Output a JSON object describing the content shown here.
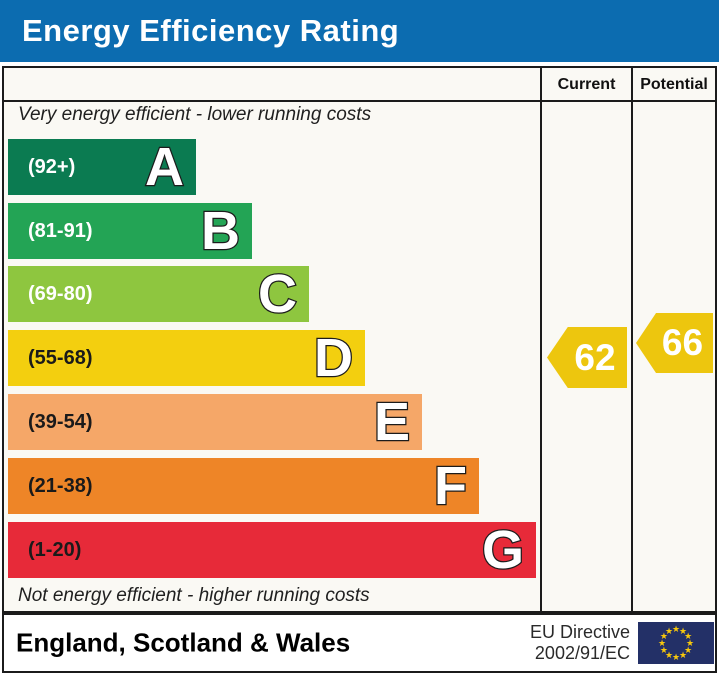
{
  "header": {
    "title": "Energy Efficiency Rating",
    "background_color": "#0c6cb0"
  },
  "table": {
    "columns": {
      "current_label": "Current",
      "potential_label": "Potential"
    },
    "top_note": "Very energy efficient - lower running costs",
    "bottom_note": "Not energy efficient - higher running costs"
  },
  "chart_data": {
    "type": "bar",
    "title": "Energy Efficiency Rating",
    "categories": [
      "A",
      "B",
      "C",
      "D",
      "E",
      "F",
      "G"
    ],
    "bands": [
      {
        "letter": "A",
        "range_label": "(92+)",
        "range_min": 92,
        "range_max": 100,
        "color": "#0b7b51",
        "label_color": "#ffffff"
      },
      {
        "letter": "B",
        "range_label": "(81-91)",
        "range_min": 81,
        "range_max": 91,
        "color": "#23a455",
        "label_color": "#ffffff"
      },
      {
        "letter": "C",
        "range_label": "(69-80)",
        "range_min": 69,
        "range_max": 80,
        "color": "#8ec63f",
        "label_color": "#ffffff"
      },
      {
        "letter": "D",
        "range_label": "(55-68)",
        "range_min": 55,
        "range_max": 68,
        "color": "#f3cf0f",
        "label_color": "#1a1a1a"
      },
      {
        "letter": "E",
        "range_label": "(39-54)",
        "range_min": 39,
        "range_max": 54,
        "color": "#f5a768",
        "label_color": "#1a1a1a"
      },
      {
        "letter": "F",
        "range_label": "(21-38)",
        "range_min": 21,
        "range_max": 38,
        "color": "#ee8527",
        "label_color": "#1a1a1a"
      },
      {
        "letter": "G",
        "range_label": "(1-20)",
        "range_min": 1,
        "range_max": 20,
        "color": "#e72a39",
        "label_color": "#1a1a1a"
      }
    ],
    "markers": {
      "current": {
        "value": "62",
        "band": "D",
        "color": "#edc60e"
      },
      "potential": {
        "value": "66",
        "band": "D",
        "color": "#edc60e"
      }
    },
    "legend_position": "none",
    "grid": false
  },
  "footer": {
    "region": "England, Scotland & Wales",
    "directive_line1": "EU Directive",
    "directive_line2": "2002/91/EC",
    "flag_color": "#233067",
    "flag_star_color": "#f8c80c"
  }
}
